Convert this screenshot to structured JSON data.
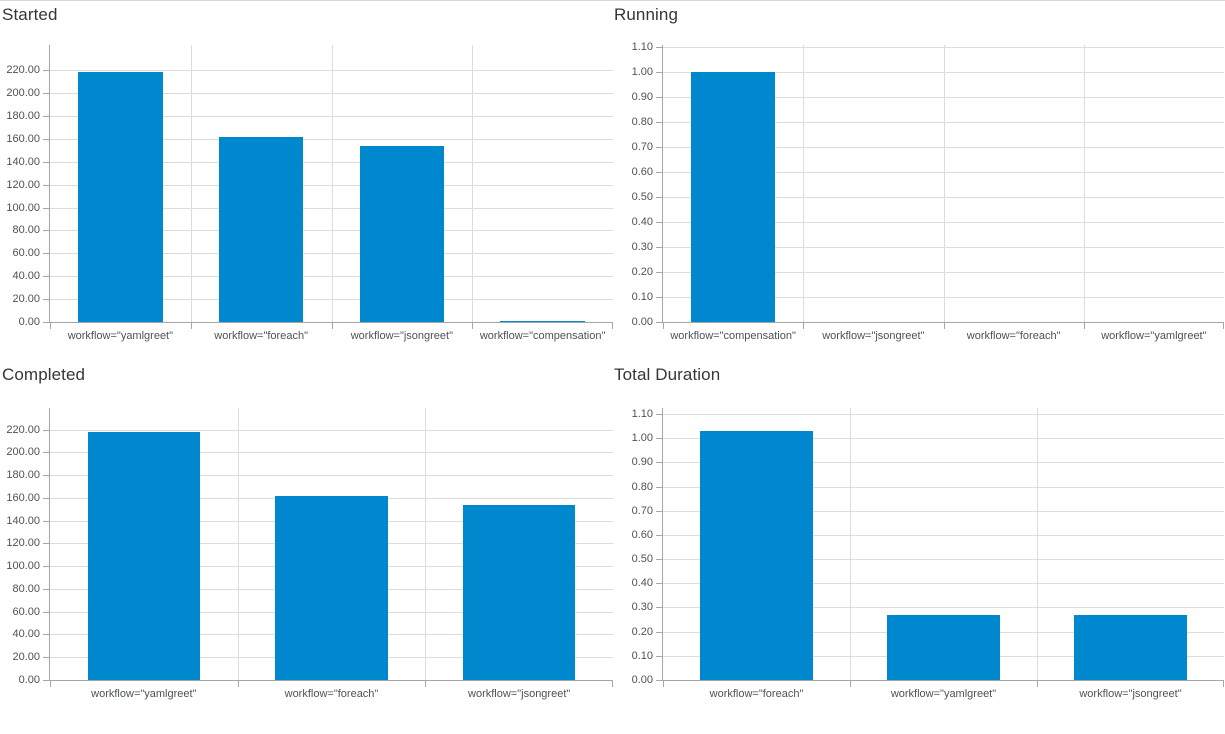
{
  "colors": {
    "bar": "#0088ce",
    "grid": "#dcdcdc",
    "axis": "#a6a6a6",
    "tick_label": "#4d5258",
    "title": "#363636",
    "page_top_border": "#d9d9d9"
  },
  "chart_data": [
    {
      "type": "bar",
      "title": "Started",
      "categories": [
        "workflow=\"yamlgreet\"",
        "workflow=\"foreach\"",
        "workflow=\"jsongreet\"",
        "workflow=\"compensation\""
      ],
      "values": [
        218,
        162,
        154,
        1
      ],
      "y_tick_values": [
        0,
        20,
        40,
        60,
        80,
        100,
        120,
        140,
        160,
        180,
        200,
        220
      ],
      "y_tick_labels": [
        "0.00",
        "20.00",
        "40.00",
        "60.00",
        "80.00",
        "100.00",
        "120.00",
        "140.00",
        "160.00",
        "180.00",
        "200.00",
        "220.00"
      ],
      "ylim": [
        0,
        242
      ],
      "xlabel": "",
      "ylabel": "",
      "grid": true,
      "legend": "none"
    },
    {
      "type": "bar",
      "title": "Running",
      "categories": [
        "workflow=\"compensation\"",
        "workflow=\"jsongreet\"",
        "workflow=\"foreach\"",
        "workflow=\"yamlgreet\""
      ],
      "values": [
        1,
        0,
        0,
        0
      ],
      "y_tick_values": [
        0,
        0.1,
        0.2,
        0.3,
        0.4,
        0.5,
        0.6,
        0.7,
        0.8,
        0.9,
        1.0,
        1.1
      ],
      "y_tick_labels": [
        "0.00",
        "0.10",
        "0.20",
        "0.30",
        "0.40",
        "0.50",
        "0.60",
        "0.70",
        "0.80",
        "0.90",
        "1.00",
        "1.10"
      ],
      "ylim": [
        0,
        1.107
      ],
      "xlabel": "",
      "ylabel": "",
      "grid": true,
      "legend": "none"
    },
    {
      "type": "bar",
      "title": "Completed",
      "categories": [
        "workflow=\"yamlgreet\"",
        "workflow=\"foreach\"",
        "workflow=\"jsongreet\""
      ],
      "values": [
        218,
        162,
        154
      ],
      "y_tick_values": [
        0,
        20,
        40,
        60,
        80,
        100,
        120,
        140,
        160,
        180,
        200,
        220
      ],
      "y_tick_labels": [
        "0.00",
        "20.00",
        "40.00",
        "60.00",
        "80.00",
        "100.00",
        "120.00",
        "140.00",
        "160.00",
        "180.00",
        "200.00",
        "220.00"
      ],
      "ylim": [
        0,
        239
      ],
      "xlabel": "",
      "ylabel": "",
      "grid": true,
      "legend": "none"
    },
    {
      "type": "bar",
      "title": "Total Duration",
      "categories": [
        "workflow=\"foreach\"",
        "workflow=\"yamlgreet\"",
        "workflow=\"jsongreet\""
      ],
      "values": [
        1.03,
        0.27,
        0.27
      ],
      "y_tick_values": [
        0,
        0.1,
        0.2,
        0.3,
        0.4,
        0.5,
        0.6,
        0.7,
        0.8,
        0.9,
        1.0,
        1.1
      ],
      "y_tick_labels": [
        "0.00",
        "0.10",
        "0.20",
        "0.30",
        "0.40",
        "0.50",
        "0.60",
        "0.70",
        "0.80",
        "0.90",
        "1.00",
        "1.10"
      ],
      "ylim": [
        0,
        1.125
      ],
      "xlabel": "",
      "ylabel": "",
      "grid": true,
      "legend": "none"
    }
  ]
}
